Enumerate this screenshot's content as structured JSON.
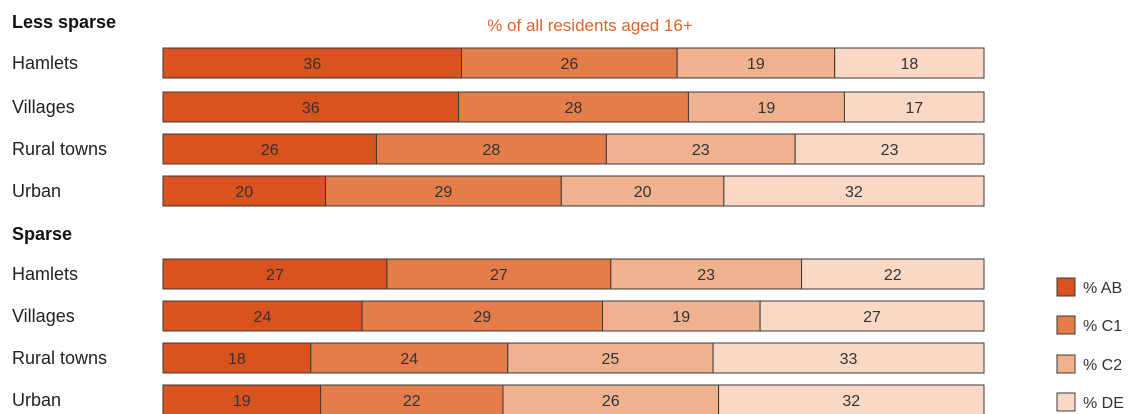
{
  "chart_data": {
    "type": "bar",
    "orientation": "horizontal",
    "stacked": true,
    "title": "% of all residents aged 16+",
    "title_color": "#e0622a",
    "grid": false,
    "legend_position": "bottom-right",
    "groups": [
      {
        "label": "Less sparse",
        "categories": [
          "Hamlets",
          "Villages",
          "Rural towns",
          "Urban"
        ],
        "series": [
          {
            "name": "% AB",
            "values": [
              36,
              36,
              26,
              20
            ]
          },
          {
            "name": "% C1",
            "values": [
              26,
              28,
              28,
              29
            ]
          },
          {
            "name": "% C2",
            "values": [
              19,
              19,
              23,
              20
            ]
          },
          {
            "name": "% DE",
            "values": [
              18,
              17,
              23,
              32
            ]
          }
        ]
      },
      {
        "label": "Sparse",
        "categories": [
          "Hamlets",
          "Villages",
          "Rural towns",
          "Urban"
        ],
        "series": [
          {
            "name": "% AB",
            "values": [
              27,
              24,
              18,
              19
            ]
          },
          {
            "name": "% C1",
            "values": [
              27,
              29,
              24,
              22
            ]
          },
          {
            "name": "% C2",
            "values": [
              23,
              19,
              25,
              26
            ]
          },
          {
            "name": "% DE",
            "values": [
              22,
              27,
              33,
              32
            ]
          }
        ]
      }
    ],
    "series_colors": [
      "#d9531e",
      "#e47d4a",
      "#f0b18f",
      "#f9d8c6"
    ],
    "legend": [
      "% AB",
      "% C1",
      "% C2",
      "% DE"
    ]
  }
}
